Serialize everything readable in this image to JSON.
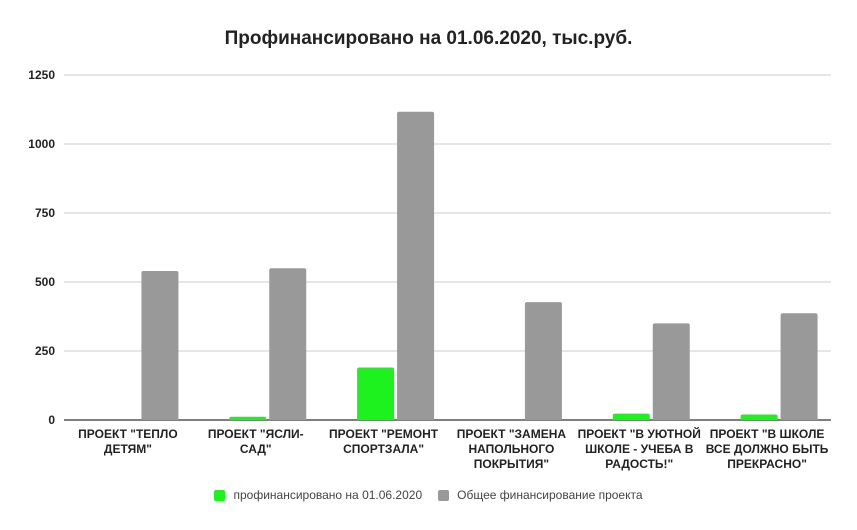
{
  "chart_data": {
    "type": "bar",
    "title": "Профинансировано на 01.06.2020, тыс.руб.",
    "categories": [
      [
        "ПРОЕКТ \"ТЕПЛО",
        "ДЕТЯМ\""
      ],
      [
        "ПРОЕКТ \"ЯСЛИ-",
        "САД\""
      ],
      [
        "ПРОЕКТ \"РЕМОНТ",
        "СПОРТЗАЛА\""
      ],
      [
        "ПРОЕКТ \"ЗАМЕНА",
        "НАПОЛЬНОГО",
        "ПОКРЫТИЯ\""
      ],
      [
        "ПРОЕКТ \"В УЮТНОЙ",
        "ШКОЛЕ - УЧЕБА В",
        "РАДОСТЬ!\""
      ],
      [
        "ПРОЕКТ \"В ШКОЛЕ",
        "ВСЕ ДОЛЖНО БЫТЬ",
        "ПРЕКРАСНО\""
      ]
    ],
    "series": [
      {
        "name": "профинансировано на 01.06.2020",
        "color": "#1ef21e",
        "values": [
          0,
          12,
          190,
          0,
          23,
          20
        ]
      },
      {
        "name": "Общее финансирование проекта",
        "color": "#999999",
        "values": [
          540,
          550,
          1117,
          427,
          350,
          387
        ]
      }
    ],
    "ylim": [
      0,
      1250
    ],
    "yticks": [
      0,
      250,
      500,
      750,
      1000,
      1250
    ],
    "ytick_labels": [
      "0",
      "250",
      "500",
      "750",
      "1000",
      "1250"
    ],
    "grid": true,
    "legend_position": "bottom"
  }
}
